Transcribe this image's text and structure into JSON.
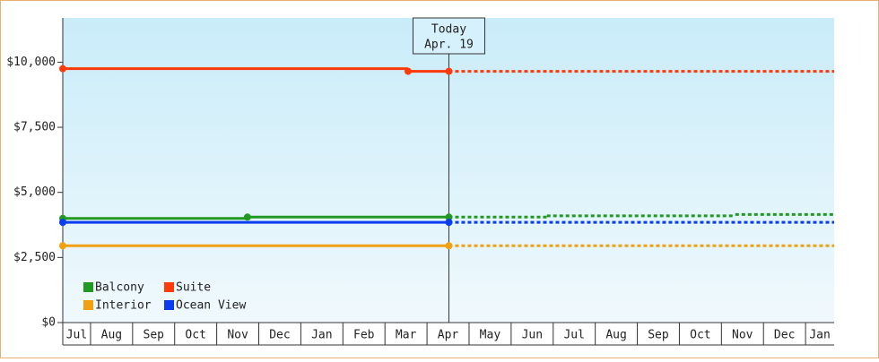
{
  "chart_data": {
    "type": "step-line",
    "categories": [
      "Jul",
      "Aug",
      "Sep",
      "Oct",
      "Nov",
      "Dec",
      "Jan",
      "Feb",
      "Mar",
      "Apr",
      "May",
      "Jun",
      "Jul",
      "Aug",
      "Sep",
      "Oct",
      "Nov",
      "Dec",
      "Jan"
    ],
    "xlim": [
      0.34,
      18.68
    ],
    "ylim": [
      0,
      11700
    ],
    "yticks": [
      {
        "value": 0,
        "label": "$0"
      },
      {
        "value": 2500,
        "label": "$2,500"
      },
      {
        "value": 5000,
        "label": "$5,000"
      },
      {
        "value": 7500,
        "label": "$7,500"
      },
      {
        "value": 10000,
        "label": "$10,000"
      }
    ],
    "today": {
      "lines": [
        "Today",
        "Apr. 19"
      ],
      "x": 9.52
    },
    "legend": "lower left",
    "series": [
      {
        "name": "Balcony",
        "color": "#229922",
        "x": [
          0.34,
          4.73,
          9.52
        ],
        "values": [
          4000,
          4050,
          4050
        ],
        "projected_x": [
          9.52,
          11.85,
          16.33
        ],
        "projected_values": [
          4050,
          4100,
          4150
        ]
      },
      {
        "name": "Suite",
        "color": "#ff3a0a",
        "x": [
          0.34,
          8.55,
          9.52
        ],
        "values": [
          9750,
          9650,
          9650
        ],
        "projected_x": [
          9.52
        ],
        "projected_values": [
          9650
        ]
      },
      {
        "name": "Interior",
        "color": "#f0a010",
        "x": [
          0.34,
          9.52
        ],
        "values": [
          2950,
          2950
        ],
        "projected_x": [
          9.52
        ],
        "projected_values": [
          2950
        ]
      },
      {
        "name": "Ocean View",
        "color": "#0a3cf0",
        "x": [
          0.34,
          9.52
        ],
        "values": [
          3850,
          3850
        ],
        "projected_x": [
          9.52
        ],
        "projected_values": [
          3850
        ]
      }
    ]
  }
}
